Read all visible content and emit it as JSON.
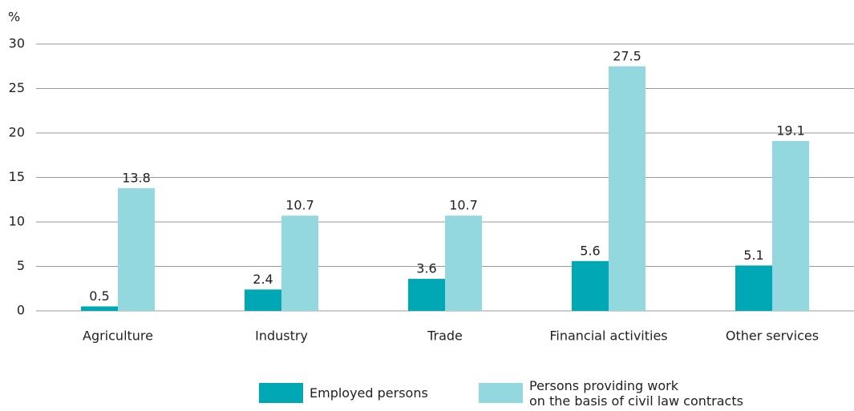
{
  "chart_data": {
    "type": "bar",
    "y_label": "%",
    "categories": [
      "Agriculture",
      "Industry",
      "Trade",
      "Financial activities",
      "Other services"
    ],
    "series": [
      {
        "name": "Employed persons",
        "color": "#00a7b5",
        "values": [
          0.5,
          2.4,
          3.6,
          5.6,
          5.1
        ]
      },
      {
        "name": "Persons providing work\non the basis of civil law contracts",
        "color": "#93d7df",
        "values": [
          13.8,
          10.7,
          10.7,
          27.5,
          19.1
        ]
      }
    ],
    "ylim": [
      0,
      30
    ],
    "yticks": [
      0,
      5,
      10,
      15,
      20,
      25,
      30
    ],
    "grid": true,
    "legend": "bottom"
  }
}
